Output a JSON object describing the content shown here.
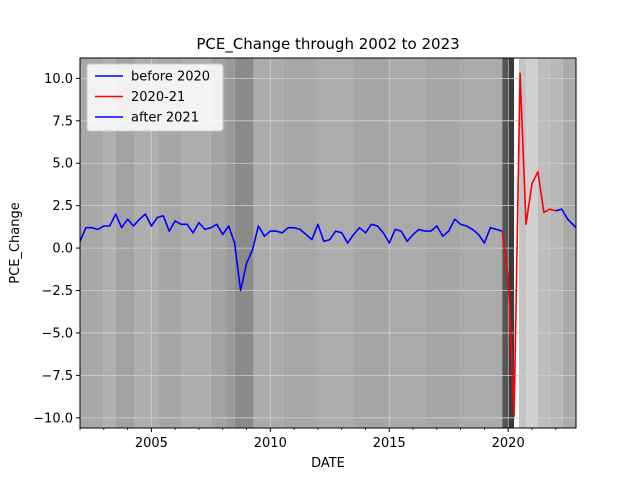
{
  "chart_data": {
    "type": "line",
    "title": "PCE_Change through 2002 to 2023",
    "xlabel": "DATE",
    "ylabel": "PCE_Change",
    "xlim": [
      2002.0,
      2022.85
    ],
    "ylim": [
      -10.6,
      11.2
    ],
    "x_ticks": [
      {
        "value": 2005,
        "label": "2005"
      },
      {
        "value": 2010,
        "label": "2010"
      },
      {
        "value": 2015,
        "label": "2015"
      },
      {
        "value": 2020,
        "label": "2020"
      }
    ],
    "y_ticks": [
      {
        "value": 10.0,
        "label": "10.0"
      },
      {
        "value": 7.5,
        "label": "7.5"
      },
      {
        "value": 5.0,
        "label": "5.0"
      },
      {
        "value": 2.5,
        "label": "2.5"
      },
      {
        "value": 0.0,
        "label": "0.0"
      },
      {
        "value": -2.5,
        "label": "−2.5"
      },
      {
        "value": -5.0,
        "label": "−5.0"
      },
      {
        "value": -7.5,
        "label": "−7.5"
      },
      {
        "value": -10.0,
        "label": "−10.0"
      }
    ],
    "grid": true,
    "legend_position": "upper-left",
    "background_bands_note": "vertical shaded bands behind the plot",
    "bands": [
      {
        "start": 2002.0,
        "end": 2003.0,
        "color": "#a8a8a8"
      },
      {
        "start": 2003.0,
        "end": 2003.5,
        "color": "#b0b0b0"
      },
      {
        "start": 2003.5,
        "end": 2004.3,
        "color": "#a2a2a2"
      },
      {
        "start": 2004.3,
        "end": 2005.3,
        "color": "#aeaeae"
      },
      {
        "start": 2005.3,
        "end": 2006.3,
        "color": "#a6a6a6"
      },
      {
        "start": 2006.3,
        "end": 2007.5,
        "color": "#adadad"
      },
      {
        "start": 2007.5,
        "end": 2008.1,
        "color": "#a4a4a4"
      },
      {
        "start": 2008.1,
        "end": 2008.5,
        "color": "#9a9a9a"
      },
      {
        "start": 2008.5,
        "end": 2009.3,
        "color": "#8a8a8a"
      },
      {
        "start": 2009.3,
        "end": 2010.5,
        "color": "#ababab"
      },
      {
        "start": 2010.5,
        "end": 2012.0,
        "color": "#a7a7a7"
      },
      {
        "start": 2012.0,
        "end": 2013.5,
        "color": "#acacac"
      },
      {
        "start": 2013.5,
        "end": 2015.0,
        "color": "#a5a5a5"
      },
      {
        "start": 2015.0,
        "end": 2016.5,
        "color": "#aaaaaa"
      },
      {
        "start": 2016.5,
        "end": 2018.0,
        "color": "#a6a6a6"
      },
      {
        "start": 2018.0,
        "end": 2019.75,
        "color": "#ababab"
      },
      {
        "start": 2019.75,
        "end": 2019.95,
        "color": "#555555"
      },
      {
        "start": 2019.95,
        "end": 2020.25,
        "color": "#3a3a3a"
      },
      {
        "start": 2020.25,
        "end": 2020.45,
        "color": "#ffffff"
      },
      {
        "start": 2020.45,
        "end": 2020.75,
        "color": "#c4c4c4"
      },
      {
        "start": 2020.75,
        "end": 2021.25,
        "color": "#d0d0d0"
      },
      {
        "start": 2021.25,
        "end": 2021.75,
        "color": "#bdbdbd"
      },
      {
        "start": 2021.75,
        "end": 2022.3,
        "color": "#b8b8b8"
      },
      {
        "start": 2022.3,
        "end": 2022.85,
        "color": "#aaaaaa"
      }
    ],
    "series": [
      {
        "name": "before 2020",
        "color": "#0000ff",
        "x": [
          2002.0,
          2002.25,
          2002.5,
          2002.75,
          2003.0,
          2003.25,
          2003.5,
          2003.75,
          2004.0,
          2004.25,
          2004.5,
          2004.75,
          2005.0,
          2005.25,
          2005.5,
          2005.75,
          2006.0,
          2006.25,
          2006.5,
          2006.75,
          2007.0,
          2007.25,
          2007.5,
          2007.75,
          2008.0,
          2008.25,
          2008.5,
          2008.75,
          2009.0,
          2009.25,
          2009.5,
          2009.75,
          2010.0,
          2010.25,
          2010.5,
          2010.75,
          2011.0,
          2011.25,
          2011.5,
          2011.75,
          2012.0,
          2012.25,
          2012.5,
          2012.75,
          2013.0,
          2013.25,
          2013.5,
          2013.75,
          2014.0,
          2014.25,
          2014.5,
          2014.75,
          2015.0,
          2015.25,
          2015.5,
          2015.75,
          2016.0,
          2016.25,
          2016.5,
          2016.75,
          2017.0,
          2017.25,
          2017.5,
          2017.75,
          2018.0,
          2018.25,
          2018.5,
          2018.75,
          2019.0,
          2019.25,
          2019.5,
          2019.75
        ],
        "values": [
          0.4,
          1.2,
          1.2,
          1.1,
          1.3,
          1.3,
          2.0,
          1.2,
          1.7,
          1.3,
          1.7,
          2.0,
          1.3,
          1.8,
          1.9,
          1.0,
          1.6,
          1.4,
          1.4,
          0.9,
          1.5,
          1.1,
          1.2,
          1.4,
          0.8,
          1.3,
          0.3,
          -2.5,
          -0.9,
          -0.1,
          1.3,
          0.7,
          1.0,
          1.0,
          0.9,
          1.2,
          1.2,
          1.1,
          0.8,
          0.5,
          1.4,
          0.4,
          0.5,
          1.0,
          0.9,
          0.3,
          0.8,
          1.2,
          0.9,
          1.4,
          1.3,
          0.9,
          0.3,
          1.1,
          1.0,
          0.4,
          0.8,
          1.1,
          1.0,
          1.0,
          1.3,
          0.7,
          1.0,
          1.7,
          1.4,
          1.3,
          1.1,
          0.8,
          0.3,
          1.2,
          1.1,
          1.0
        ]
      },
      {
        "name": "2020-21",
        "color": "#ff0000",
        "x": [
          2019.75,
          2020.0,
          2020.25,
          2020.5,
          2020.75,
          2021.0,
          2021.25,
          2021.5,
          2021.75,
          2022.0
        ],
        "values": [
          1.0,
          -1.8,
          -9.9,
          10.3,
          1.4,
          3.8,
          4.5,
          2.1,
          2.3,
          2.2
        ]
      },
      {
        "name": "after 2021",
        "color": "#0000ff",
        "x": [
          2022.0,
          2022.25,
          2022.5,
          2022.85
        ],
        "values": [
          2.2,
          2.3,
          1.7,
          1.2
        ]
      }
    ]
  }
}
